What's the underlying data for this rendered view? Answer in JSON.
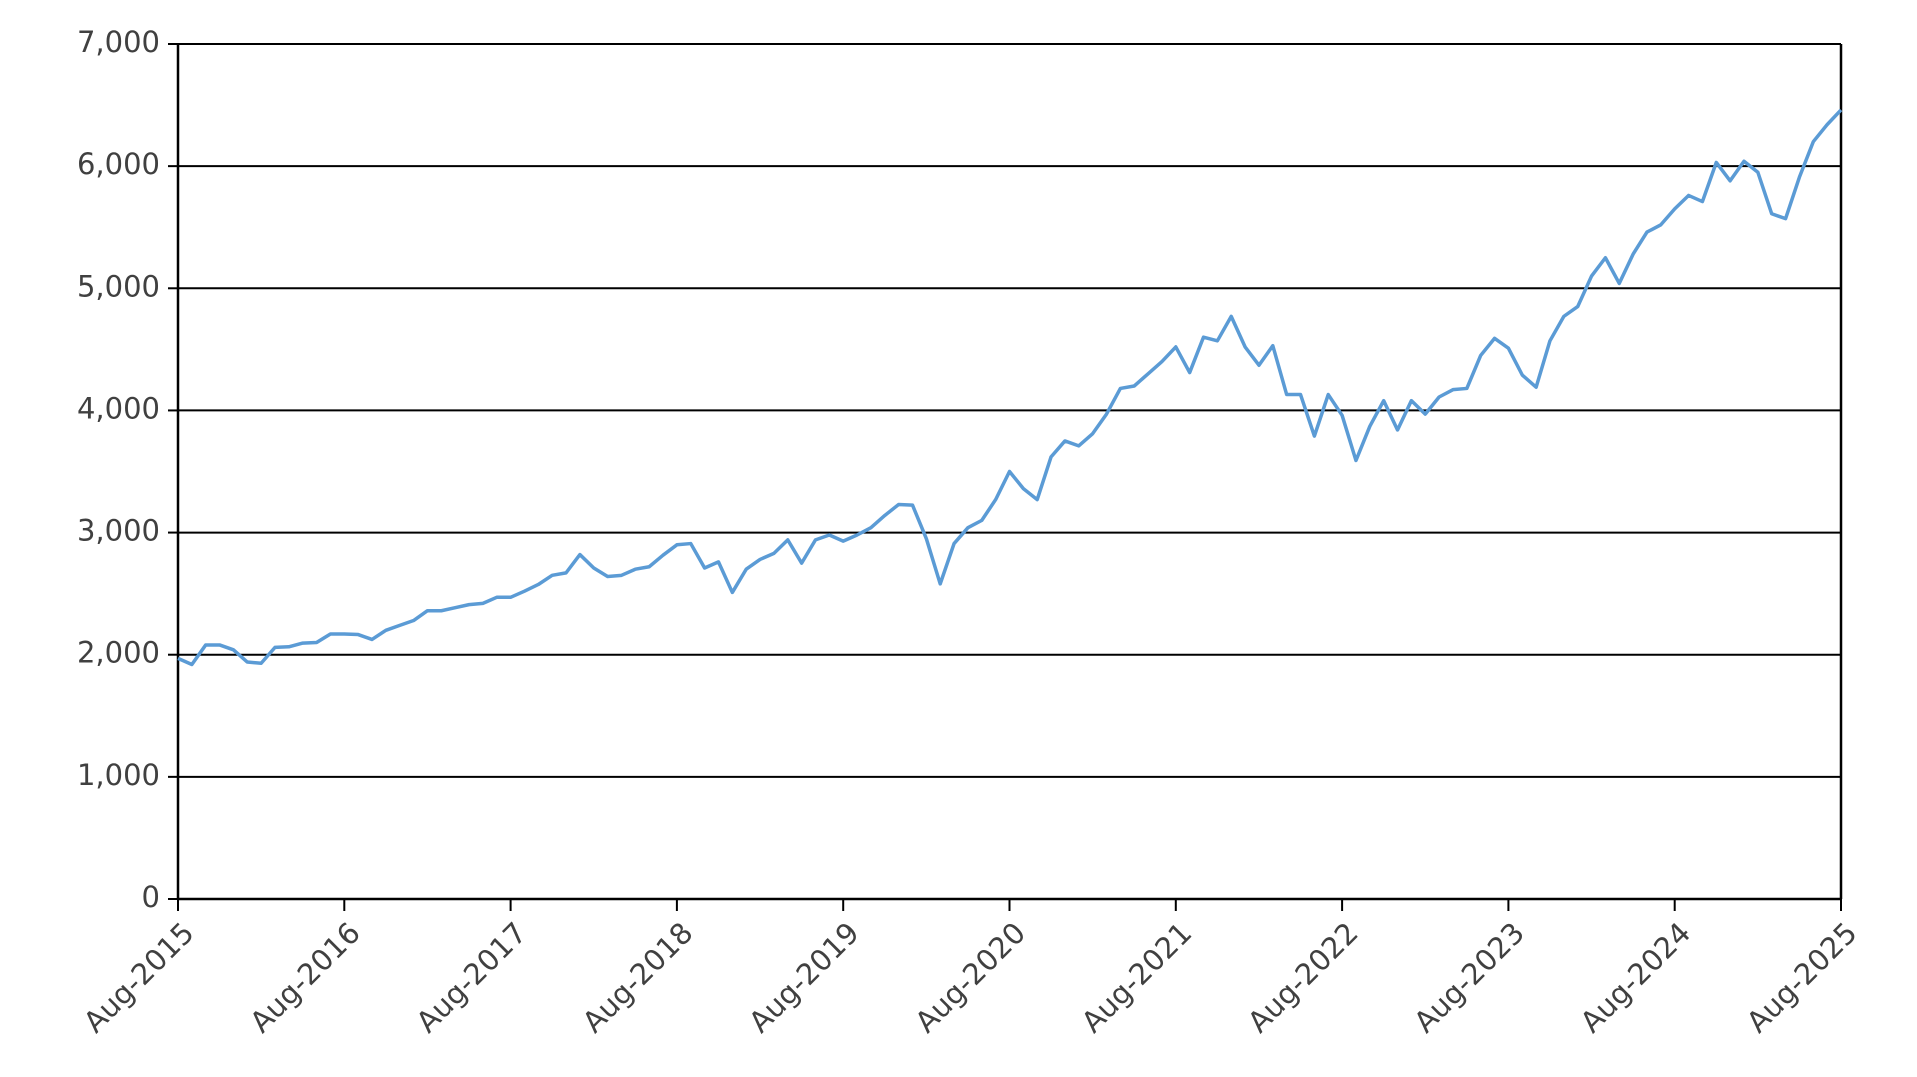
{
  "chart_data": {
    "type": "line",
    "x": [
      "2015-08",
      "2015-09",
      "2015-10",
      "2015-11",
      "2015-12",
      "2016-01",
      "2016-02",
      "2016-03",
      "2016-04",
      "2016-05",
      "2016-06",
      "2016-07",
      "2016-08",
      "2016-09",
      "2016-10",
      "2016-11",
      "2016-12",
      "2017-01",
      "2017-02",
      "2017-03",
      "2017-04",
      "2017-05",
      "2017-06",
      "2017-07",
      "2017-08",
      "2017-09",
      "2017-10",
      "2017-11",
      "2017-12",
      "2018-01",
      "2018-02",
      "2018-03",
      "2018-04",
      "2018-05",
      "2018-06",
      "2018-07",
      "2018-08",
      "2018-09",
      "2018-10",
      "2018-11",
      "2018-12",
      "2019-01",
      "2019-02",
      "2019-03",
      "2019-04",
      "2019-05",
      "2019-06",
      "2019-07",
      "2019-08",
      "2019-09",
      "2019-10",
      "2019-11",
      "2019-12",
      "2020-01",
      "2020-02",
      "2020-03",
      "2020-04",
      "2020-05",
      "2020-06",
      "2020-07",
      "2020-08",
      "2020-09",
      "2020-10",
      "2020-11",
      "2020-12",
      "2021-01",
      "2021-02",
      "2021-03",
      "2021-04",
      "2021-05",
      "2021-06",
      "2021-07",
      "2021-08",
      "2021-09",
      "2021-10",
      "2021-11",
      "2021-12",
      "2022-01",
      "2022-02",
      "2022-03",
      "2022-04",
      "2022-05",
      "2022-06",
      "2022-07",
      "2022-08",
      "2022-09",
      "2022-10",
      "2022-11",
      "2022-12",
      "2023-01",
      "2023-02",
      "2023-03",
      "2023-04",
      "2023-05",
      "2023-06",
      "2023-07",
      "2023-08",
      "2023-09",
      "2023-10",
      "2023-11",
      "2023-12",
      "2024-01",
      "2024-02",
      "2024-03",
      "2024-04",
      "2024-05",
      "2024-06",
      "2024-07",
      "2024-08",
      "2024-09",
      "2024-10",
      "2024-11",
      "2024-12",
      "2025-01",
      "2025-02",
      "2025-03",
      "2025-04",
      "2025-05",
      "2025-06",
      "2025-07",
      "2025-08"
    ],
    "series": [
      {
        "color": "#5b9bd5",
        "values": [
          1970,
          1920,
          2080,
          2080,
          2040,
          1940,
          1930,
          2060,
          2065,
          2095,
          2100,
          2170,
          2170,
          2165,
          2125,
          2200,
          2240,
          2280,
          2360,
          2360,
          2385,
          2410,
          2420,
          2470,
          2470,
          2520,
          2575,
          2650,
          2670,
          2820,
          2710,
          2640,
          2650,
          2700,
          2720,
          2815,
          2900,
          2910,
          2710,
          2760,
          2510,
          2700,
          2780,
          2830,
          2940,
          2750,
          2940,
          2980,
          2930,
          2980,
          3040,
          3140,
          3230,
          3225,
          2950,
          2580,
          2910,
          3040,
          3100,
          3270,
          3500,
          3360,
          3270,
          3620,
          3750,
          3710,
          3810,
          3970,
          4180,
          4200,
          4300,
          4400,
          4520,
          4310,
          4600,
          4570,
          4770,
          4520,
          4370,
          4530,
          4130,
          4130,
          3790,
          4130,
          3960,
          3590,
          3870,
          4080,
          3840,
          4080,
          3970,
          4110,
          4170,
          4180,
          4450,
          4590,
          4510,
          4290,
          4190,
          4570,
          4770,
          4850,
          5100,
          5250,
          5040,
          5280,
          5460,
          5520,
          5650,
          5760,
          5710,
          6030,
          5880,
          6040,
          5950,
          5610,
          5570,
          5910,
          6200,
          6340,
          6460
        ]
      }
    ],
    "xlim": [
      "2015-08",
      "2025-08"
    ],
    "xticks": [
      {
        "value": "2015-08",
        "label": "Aug-2015"
      },
      {
        "value": "2016-08",
        "label": "Aug-2016"
      },
      {
        "value": "2017-08",
        "label": "Aug-2017"
      },
      {
        "value": "2018-08",
        "label": "Aug-2018"
      },
      {
        "value": "2019-08",
        "label": "Aug-2019"
      },
      {
        "value": "2020-08",
        "label": "Aug-2020"
      },
      {
        "value": "2021-08",
        "label": "Aug-2021"
      },
      {
        "value": "2022-08",
        "label": "Aug-2022"
      },
      {
        "value": "2023-08",
        "label": "Aug-2023"
      },
      {
        "value": "2024-08",
        "label": "Aug-2024"
      },
      {
        "value": "2025-08",
        "label": "Aug-2025"
      }
    ],
    "ylim": [
      0,
      7000
    ],
    "yticks": [
      0,
      {
        "value": 1000,
        "label": "1,000"
      },
      {
        "value": 2000,
        "label": "2,000"
      },
      {
        "value": 3000,
        "label": "3,000"
      },
      {
        "value": 4000,
        "label": "4,000"
      },
      {
        "value": 5000,
        "label": "5,000"
      },
      {
        "value": 6000,
        "label": "6,000"
      },
      {
        "value": 7000,
        "label": "7,000"
      }
    ],
    "grid": true
  }
}
